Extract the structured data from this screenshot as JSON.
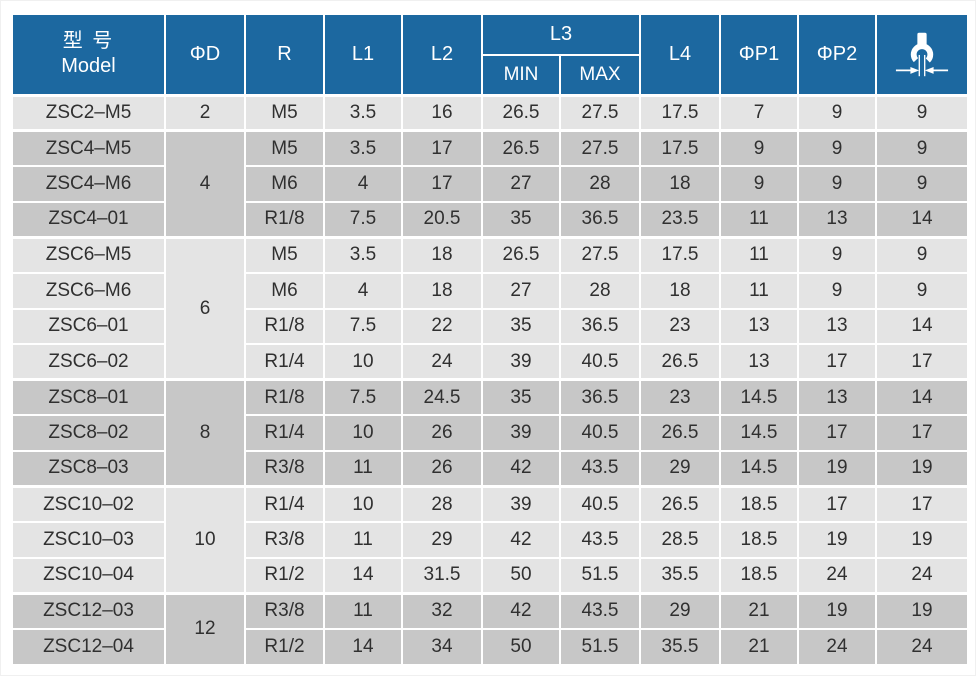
{
  "table": {
    "header": {
      "model_cn": "型 号",
      "model_en": "Model",
      "phi_d": "ΦD",
      "r": "R",
      "l1": "L1",
      "l2": "L2",
      "l3": "L3",
      "l3_min": "MIN",
      "l3_max": "MAX",
      "l4": "L4",
      "phi_p1": "ΦP1",
      "phi_p2": "ΦP2"
    },
    "icons": {
      "wrench": "wrench-across-flats"
    },
    "colors": {
      "header_bg": "#1c68a0",
      "header_text": "#ffffff",
      "row_light": "#e4e4e4",
      "row_dark": "#c7c7c7",
      "body_text": "#303030"
    },
    "groups": [
      {
        "phi_d": "2",
        "rows": [
          {
            "model": "ZSC2–M5",
            "r": "M5",
            "l1": "3.5",
            "l2": "16",
            "l3_min": "26.5",
            "l3_max": "27.5",
            "l4": "17.5",
            "p1": "7",
            "p2": "9",
            "af": "9"
          }
        ]
      },
      {
        "phi_d": "4",
        "rows": [
          {
            "model": "ZSC4–M5",
            "r": "M5",
            "l1": "3.5",
            "l2": "17",
            "l3_min": "26.5",
            "l3_max": "27.5",
            "l4": "17.5",
            "p1": "9",
            "p2": "9",
            "af": "9"
          },
          {
            "model": "ZSC4–M6",
            "r": "M6",
            "l1": "4",
            "l2": "17",
            "l3_min": "27",
            "l3_max": "28",
            "l4": "18",
            "p1": "9",
            "p2": "9",
            "af": "9"
          },
          {
            "model": "ZSC4–01",
            "r": "R1/8",
            "l1": "7.5",
            "l2": "20.5",
            "l3_min": "35",
            "l3_max": "36.5",
            "l4": "23.5",
            "p1": "11",
            "p2": "13",
            "af": "14"
          }
        ]
      },
      {
        "phi_d": "6",
        "rows": [
          {
            "model": "ZSC6–M5",
            "r": "M5",
            "l1": "3.5",
            "l2": "18",
            "l3_min": "26.5",
            "l3_max": "27.5",
            "l4": "17.5",
            "p1": "11",
            "p2": "9",
            "af": "9"
          },
          {
            "model": "ZSC6–M6",
            "r": "M6",
            "l1": "4",
            "l2": "18",
            "l3_min": "27",
            "l3_max": "28",
            "l4": "18",
            "p1": "11",
            "p2": "9",
            "af": "9"
          },
          {
            "model": "ZSC6–01",
            "r": "R1/8",
            "l1": "7.5",
            "l2": "22",
            "l3_min": "35",
            "l3_max": "36.5",
            "l4": "23",
            "p1": "13",
            "p2": "13",
            "af": "14"
          },
          {
            "model": "ZSC6–02",
            "r": "R1/4",
            "l1": "10",
            "l2": "24",
            "l3_min": "39",
            "l3_max": "40.5",
            "l4": "26.5",
            "p1": "13",
            "p2": "17",
            "af": "17"
          }
        ]
      },
      {
        "phi_d": "8",
        "rows": [
          {
            "model": "ZSC8–01",
            "r": "R1/8",
            "l1": "7.5",
            "l2": "24.5",
            "l3_min": "35",
            "l3_max": "36.5",
            "l4": "23",
            "p1": "14.5",
            "p2": "13",
            "af": "14"
          },
          {
            "model": "ZSC8–02",
            "r": "R1/4",
            "l1": "10",
            "l2": "26",
            "l3_min": "39",
            "l3_max": "40.5",
            "l4": "26.5",
            "p1": "14.5",
            "p2": "17",
            "af": "17"
          },
          {
            "model": "ZSC8–03",
            "r": "R3/8",
            "l1": "11",
            "l2": "26",
            "l3_min": "42",
            "l3_max": "43.5",
            "l4": "29",
            "p1": "14.5",
            "p2": "19",
            "af": "19"
          }
        ]
      },
      {
        "phi_d": "10",
        "rows": [
          {
            "model": "ZSC10–02",
            "r": "R1/4",
            "l1": "10",
            "l2": "28",
            "l3_min": "39",
            "l3_max": "40.5",
            "l4": "26.5",
            "p1": "18.5",
            "p2": "17",
            "af": "17"
          },
          {
            "model": "ZSC10–03",
            "r": "R3/8",
            "l1": "11",
            "l2": "29",
            "l3_min": "42",
            "l3_max": "43.5",
            "l4": "28.5",
            "p1": "18.5",
            "p2": "19",
            "af": "19"
          },
          {
            "model": "ZSC10–04",
            "r": "R1/2",
            "l1": "14",
            "l2": "31.5",
            "l3_min": "50",
            "l3_max": "51.5",
            "l4": "35.5",
            "p1": "18.5",
            "p2": "24",
            "af": "24"
          }
        ]
      },
      {
        "phi_d": "12",
        "rows": [
          {
            "model": "ZSC12–03",
            "r": "R3/8",
            "l1": "11",
            "l2": "32",
            "l3_min": "42",
            "l3_max": "43.5",
            "l4": "29",
            "p1": "21",
            "p2": "19",
            "af": "19"
          },
          {
            "model": "ZSC12–04",
            "r": "R1/2",
            "l1": "14",
            "l2": "34",
            "l3_min": "50",
            "l3_max": "51.5",
            "l4": "35.5",
            "p1": "21",
            "p2": "24",
            "af": "24"
          }
        ]
      }
    ]
  }
}
